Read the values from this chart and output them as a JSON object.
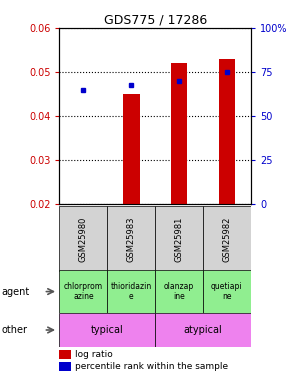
{
  "title": "GDS775 / 17286",
  "samples": [
    "GSM25980",
    "GSM25983",
    "GSM25981",
    "GSM25982"
  ],
  "log_ratio": [
    0.02,
    0.045,
    0.052,
    0.053
  ],
  "log_ratio_base": 0.02,
  "pct_values": [
    65,
    68,
    70,
    75
  ],
  "ylim_left": [
    0.02,
    0.06
  ],
  "ylim_right": [
    0,
    100
  ],
  "yticks_left": [
    0.02,
    0.03,
    0.04,
    0.05,
    0.06
  ],
  "yticks_right": [
    0,
    25,
    50,
    75,
    100
  ],
  "agent_labels": [
    "chlorprom\nazine",
    "thioridazin\ne",
    "olanzap\nine",
    "quetiapi\nne"
  ],
  "agent_bg": "#90ee90",
  "other_bg": "#ee82ee",
  "bar_color": "#cc0000",
  "dot_color": "#0000cc",
  "sample_bg": "#d3d3d3",
  "left_label_color": "#cc0000",
  "right_label_color": "#0000cc",
  "title_fontsize": 9,
  "tick_fontsize": 7,
  "sample_fontsize": 6,
  "agent_fontsize": 5.5,
  "other_fontsize": 7,
  "legend_fontsize": 6.5
}
